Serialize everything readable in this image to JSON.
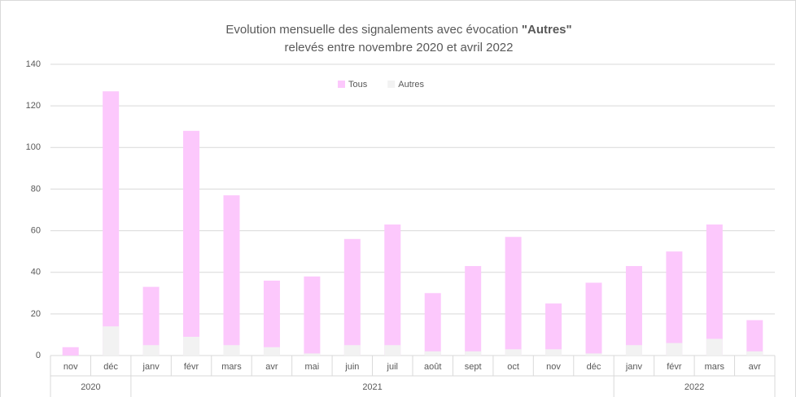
{
  "chart_data": {
    "type": "bar",
    "title": [
      "Evolution mensuelle des signalements avec évocation ",
      "\"Autres\""
    ],
    "subtitle": "relevés entre novembre 2020 et avril 2022",
    "categories": [
      "nov",
      "déc",
      "janv",
      "févr",
      "mars",
      "avr",
      "mai",
      "juin",
      "juil",
      "août",
      "sept",
      "oct",
      "nov",
      "déc",
      "janv",
      "févr",
      "mars",
      "avr"
    ],
    "group_labels": [
      "2020",
      null,
      "2021",
      null,
      null,
      null,
      null,
      null,
      null,
      null,
      null,
      null,
      null,
      null,
      "2022",
      null,
      null,
      null
    ],
    "series": [
      {
        "name": "Tous",
        "color": "#fcc8fc",
        "values": [
          4,
          127,
          33,
          108,
          77,
          36,
          38,
          56,
          63,
          30,
          43,
          57,
          25,
          35,
          43,
          50,
          63,
          17
        ]
      },
      {
        "name": "Autres",
        "color": "#f2f2f2",
        "values": [
          0,
          14,
          5,
          9,
          5,
          4,
          1,
          5,
          5,
          2,
          2,
          3,
          3,
          1,
          5,
          6,
          8,
          2
        ]
      }
    ],
    "ylim": [
      0,
      140
    ],
    "yticks": [
      0,
      20,
      40,
      60,
      80,
      100,
      120,
      140
    ],
    "grid": true,
    "legend": "top"
  }
}
